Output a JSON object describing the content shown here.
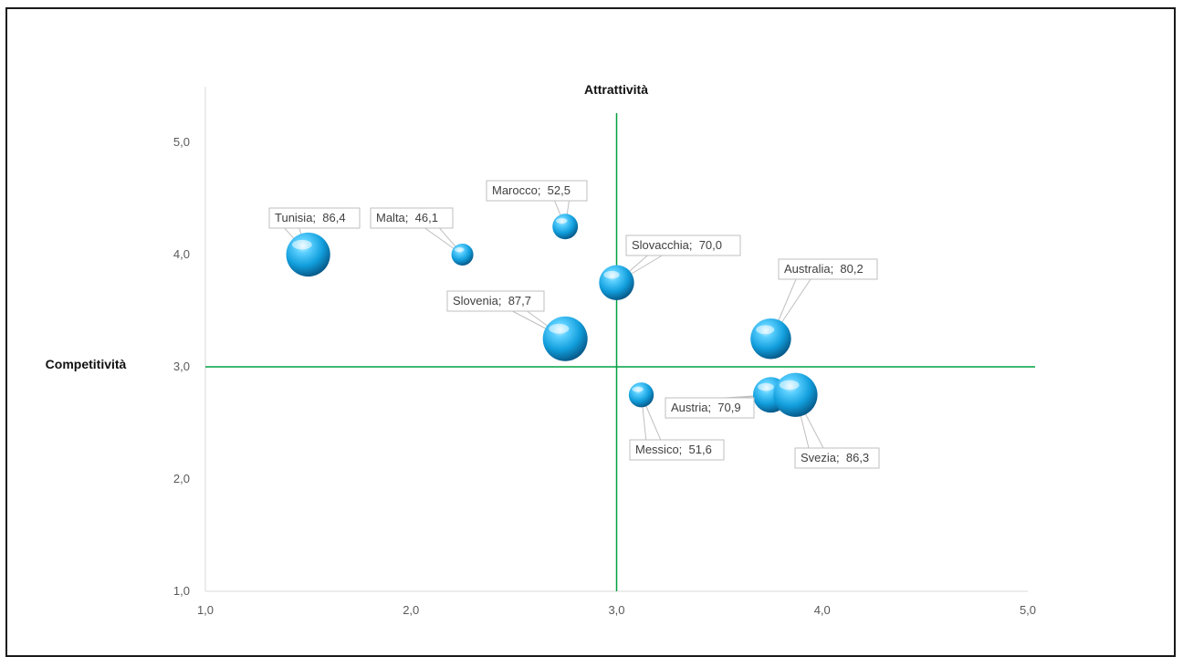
{
  "chart_data": {
    "type": "bubble",
    "title": "",
    "xlabel": "Attrattività",
    "ylabel": "Competitività",
    "xlim": [
      1.0,
      5.0
    ],
    "ylim": [
      1.0,
      5.0
    ],
    "xticks": [
      "1,0",
      "2,0",
      "3,0",
      "4,0",
      "5,0"
    ],
    "yticks": [
      "1,0",
      "2,0",
      "3,0",
      "4,0",
      "5,0"
    ],
    "reference_lines": {
      "x": 3.0,
      "y": 3.0,
      "color": "#00a040"
    },
    "grid": false,
    "legend": "none",
    "bubble_color": "#1aa3e0",
    "points": [
      {
        "name": "Tunisia",
        "x": 1.5,
        "y": 4.0,
        "size": 86.4,
        "label": "Tunisia;  86,4"
      },
      {
        "name": "Malta",
        "x": 2.25,
        "y": 4.0,
        "size": 46.1,
        "label": "Malta;  46,1"
      },
      {
        "name": "Marocco",
        "x": 2.75,
        "y": 4.25,
        "size": 52.5,
        "label": "Marocco;  52,5"
      },
      {
        "name": "Slovenia",
        "x": 2.75,
        "y": 3.25,
        "size": 87.7,
        "label": "Slovenia;  87,7"
      },
      {
        "name": "Slovacchia",
        "x": 3.0,
        "y": 3.75,
        "size": 70.0,
        "label": "Slovacchia;  70,0"
      },
      {
        "name": "Messico",
        "x": 3.12,
        "y": 2.75,
        "size": 51.6,
        "label": "Messico;  51,6"
      },
      {
        "name": "Australia",
        "x": 3.75,
        "y": 3.25,
        "size": 80.2,
        "label": "Australia;  80,2"
      },
      {
        "name": "Austria",
        "x": 3.75,
        "y": 2.75,
        "size": 70.9,
        "label": "Austria;  70,9"
      },
      {
        "name": "Svezia",
        "x": 3.87,
        "y": 2.75,
        "size": 86.3,
        "label": "Svezia;  86,3"
      }
    ]
  }
}
